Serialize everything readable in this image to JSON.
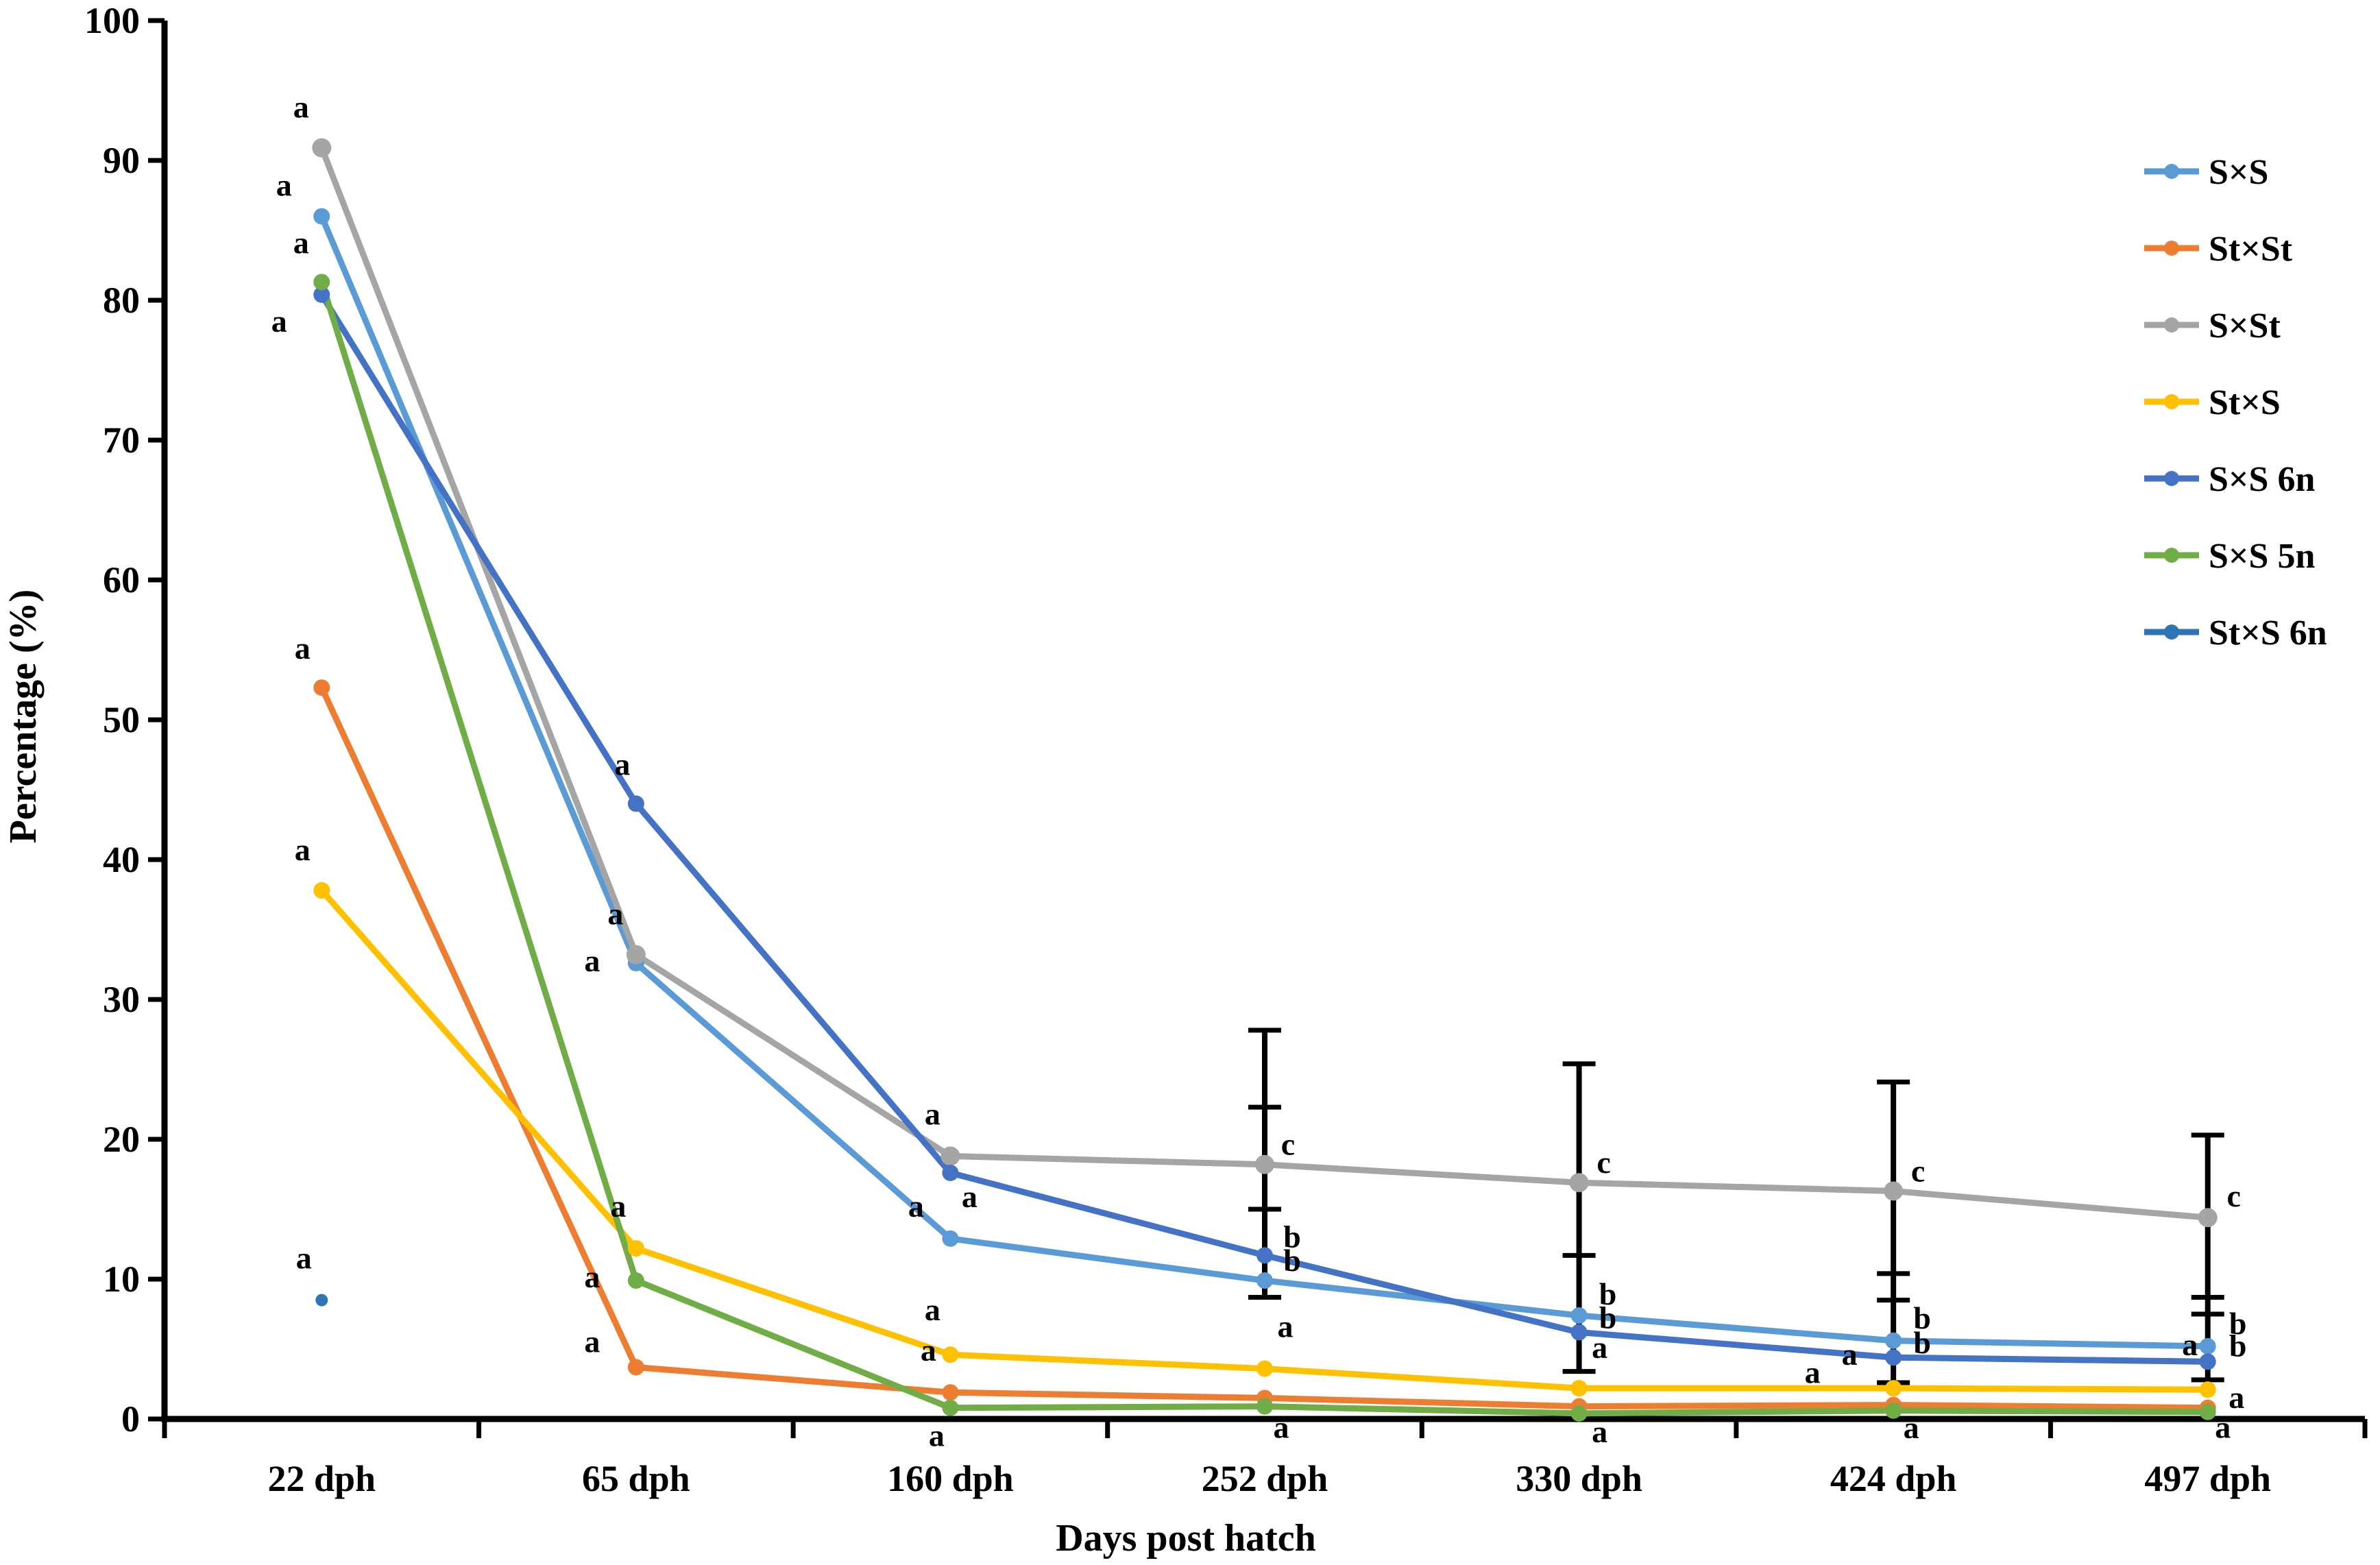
{
  "chart_data": {
    "type": "line",
    "title": "",
    "xlabel": "Days post hatch",
    "ylabel": "Percentage (%)",
    "ylim": [
      0,
      100
    ],
    "y_tick_step": 10,
    "y_tick_labels": [
      "0",
      "10",
      "20",
      "30",
      "40",
      "50",
      "60",
      "70",
      "80",
      "90",
      "100"
    ],
    "grid": false,
    "legend_position": "top-right",
    "categories": [
      "22 dph",
      "65 dph",
      "160 dph",
      "252 dph",
      "330 dph",
      "424 dph",
      "497 dph"
    ],
    "series": [
      {
        "name": "S×S",
        "color": "#5B9BD5",
        "marker_r": 12,
        "values": [
          86.0,
          32.6,
          12.9,
          9.9,
          7.4,
          5.6,
          5.2
        ],
        "letters": [
          {
            "t": "a",
            "dx": -55,
            "dy": -30
          },
          {
            "t": "a",
            "dx": -64,
            "dy": 12
          },
          {
            "t": "a",
            "dx": -50,
            "dy": -32
          },
          {
            "t": "b",
            "dx": 40,
            "dy": -14
          },
          {
            "t": "b",
            "dx": 42,
            "dy": -16
          },
          {
            "t": "b",
            "dx": 42,
            "dy": -18
          },
          {
            "t": "b",
            "dx": 44,
            "dy": -18
          }
        ]
      },
      {
        "name": "St×St",
        "color": "#ED7D31",
        "marker_r": 12,
        "values": [
          52.3,
          3.7,
          1.9,
          1.5,
          0.9,
          1.0,
          0.8
        ],
        "letters": [
          {
            "t": "a",
            "dx": -28,
            "dy": -42
          },
          {
            "t": "a",
            "dx": -64,
            "dy": -22
          },
          {
            "t": "a",
            "dx": -32,
            "dy": -46
          },
          null,
          null,
          {
            "t": "a",
            "dx": -118,
            "dy": -32
          },
          {
            "t": "a",
            "dx": 22,
            "dy": 44
          }
        ]
      },
      {
        "name": "S×St",
        "color": "#A5A5A5",
        "marker_r": 14,
        "values": [
          90.9,
          33.2,
          18.8,
          18.2,
          16.9,
          16.3,
          14.4
        ],
        "letters": [
          {
            "t": "a",
            "dx": -30,
            "dy": -44
          },
          {
            "t": "a",
            "dx": -30,
            "dy": -44
          },
          {
            "t": "a",
            "dx": -26,
            "dy": -46
          },
          {
            "t": "c",
            "dx": 34,
            "dy": -14
          },
          {
            "t": "c",
            "dx": 36,
            "dy": -14
          },
          {
            "t": "c",
            "dx": 36,
            "dy": -14
          },
          {
            "t": "c",
            "dx": 38,
            "dy": -16
          }
        ]
      },
      {
        "name": "St×S",
        "color": "#FFC000",
        "marker_r": 12,
        "values": [
          37.8,
          12.2,
          4.6,
          3.6,
          2.2,
          2.2,
          2.1
        ],
        "letters": [
          {
            "t": "a",
            "dx": -28,
            "dy": -44
          },
          {
            "t": "a",
            "dx": -26,
            "dy": -46
          },
          {
            "t": "a",
            "dx": -26,
            "dy": -50
          },
          {
            "t": "a",
            "dx": 30,
            "dy": -46
          },
          {
            "t": "a",
            "dx": 30,
            "dy": -44
          },
          {
            "t": "a",
            "dx": -64,
            "dy": -34
          },
          {
            "t": "a",
            "dx": -26,
            "dy": -50
          }
        ]
      },
      {
        "name": "S×S 6n",
        "color": "#4472C4",
        "marker_r": 12,
        "values": [
          80.4,
          44.0,
          17.6,
          11.7,
          6.2,
          4.4,
          4.1
        ],
        "letters": [
          {
            "t": "a",
            "dx": -62,
            "dy": 54
          },
          {
            "t": "a",
            "dx": -20,
            "dy": -42
          },
          {
            "t": "a",
            "dx": 28,
            "dy": 50
          },
          {
            "t": "b",
            "dx": 40,
            "dy": -12
          },
          {
            "t": "b",
            "dx": 42,
            "dy": -6
          },
          {
            "t": "b",
            "dx": 42,
            "dy": -6
          },
          {
            "t": "b",
            "dx": 44,
            "dy": -8
          }
        ]
      },
      {
        "name": "S×S 5n",
        "color": "#70AD47",
        "marker_r": 12,
        "values": [
          81.3,
          9.9,
          0.8,
          0.9,
          0.4,
          0.6,
          0.5
        ],
        "letters": [
          {
            "t": "a",
            "dx": -30,
            "dy": -42
          },
          {
            "t": "a",
            "dx": -64,
            "dy": 10
          },
          {
            "t": "a",
            "dx": -20,
            "dy": 56
          },
          {
            "t": "a",
            "dx": 24,
            "dy": 46
          },
          {
            "t": "a",
            "dx": 30,
            "dy": 42
          },
          {
            "t": "a",
            "dx": 26,
            "dy": 40
          },
          {
            "t": "a",
            "dx": 42,
            "dy": -6
          }
        ]
      },
      {
        "name": "St×S 6n",
        "color": "#2E75B6",
        "marker_r": 9,
        "values": [
          8.5,
          null,
          null,
          null,
          null,
          null,
          null
        ],
        "letters": [
          {
            "t": "a",
            "dx": -26,
            "dy": -46
          },
          null,
          null,
          null,
          null,
          null,
          null
        ]
      }
    ],
    "error_bars": [
      {
        "x_index": 3,
        "line": [
          8.7,
          27.8
        ],
        "caps": [
          27.8,
          22.3,
          15.0,
          8.7
        ]
      },
      {
        "x_index": 4,
        "line": [
          3.4,
          25.4
        ],
        "caps": [
          25.4,
          11.7,
          3.4
        ]
      },
      {
        "x_index": 5,
        "line": [
          2.6,
          24.1
        ],
        "caps": [
          24.1,
          10.4,
          8.5,
          2.6
        ]
      },
      {
        "x_index": 6,
        "line": [
          2.8,
          20.3
        ],
        "caps": [
          20.3,
          8.7,
          7.5,
          2.8
        ]
      }
    ],
    "legend_entries": [
      "S×S",
      "St×St",
      "S×St",
      "St×S",
      "S×S 6n",
      "S×S 5n",
      "St×S 6n"
    ]
  }
}
